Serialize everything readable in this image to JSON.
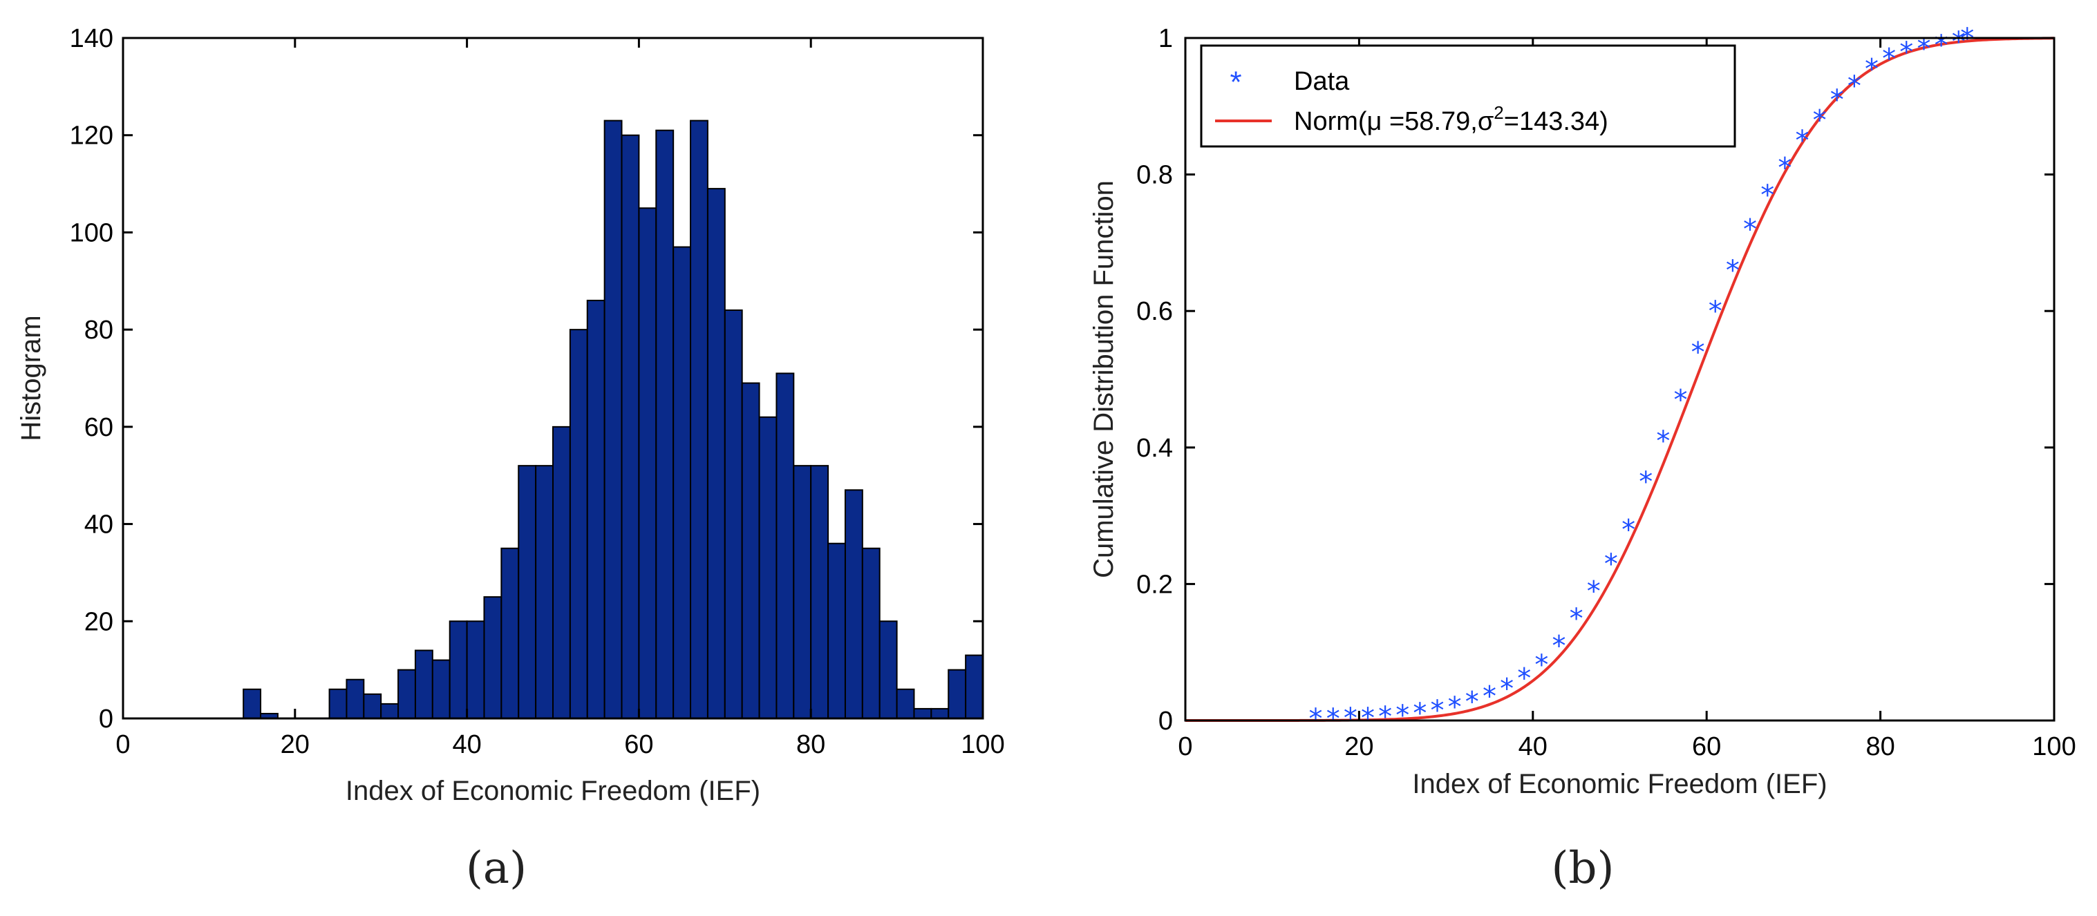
{
  "chart_data": [
    {
      "id": "a",
      "type": "bar",
      "subtype": "histogram",
      "panel_label": "(a)",
      "title": "",
      "xlabel": "Index of Economic Freedom (IEF)",
      "ylabel": "Histogram",
      "xlim": [
        0,
        100
      ],
      "ylim": [
        0,
        140
      ],
      "xticks": [
        0,
        20,
        40,
        60,
        80,
        100
      ],
      "yticks": [
        0,
        20,
        40,
        60,
        80,
        100,
        120,
        140
      ],
      "bin_width": 2,
      "bin_start": 0,
      "values": [
        0,
        0,
        0,
        0,
        0,
        0,
        0,
        6,
        1,
        0,
        0,
        0,
        6,
        8,
        5,
        3,
        10,
        14,
        12,
        20,
        20,
        25,
        35,
        52,
        52,
        60,
        80,
        86,
        123,
        120,
        105,
        121,
        97,
        123,
        109,
        84,
        69,
        62,
        71,
        52,
        52,
        36,
        47,
        35,
        20,
        6,
        2,
        2,
        10,
        13
      ],
      "color": "#0a2a8a"
    },
    {
      "id": "b",
      "type": "line",
      "subtype": "cdf",
      "panel_label": "(b)",
      "title": "",
      "xlabel": "Index of Economic Freedom (IEF)",
      "ylabel": "Cumulative Distribution Function",
      "xlim": [
        0,
        100
      ],
      "ylim": [
        0,
        1
      ],
      "xticks": [
        0,
        20,
        40,
        60,
        80,
        100
      ],
      "yticks": [
        0,
        0.2,
        0.4,
        0.6,
        0.8,
        1
      ],
      "yticklabels": [
        "0",
        "0.2",
        "0.4",
        "0.6",
        "0.8",
        "1"
      ],
      "legend": {
        "position": "top-left",
        "data_label": "Data",
        "fit_label_prefix": "Norm(μ =58.79,σ",
        "fit_label_sup": "2",
        "fit_label_suffix": "=143.34)"
      },
      "series": [
        {
          "name": "Data",
          "kind": "scatter",
          "marker": "*",
          "color": "#1f4fff",
          "x": [
            15,
            17,
            19,
            21,
            23,
            25,
            27,
            29,
            31,
            33,
            35,
            37,
            39,
            41,
            43,
            45,
            47,
            49,
            51,
            53,
            55,
            57,
            59,
            61,
            63,
            65,
            67,
            69,
            71,
            73,
            75,
            77,
            79,
            81,
            83,
            85,
            87,
            89,
            90
          ],
          "y": [
            0.003,
            0.003,
            0.004,
            0.004,
            0.006,
            0.008,
            0.011,
            0.015,
            0.02,
            0.028,
            0.036,
            0.047,
            0.062,
            0.082,
            0.11,
            0.15,
            0.19,
            0.23,
            0.28,
            0.35,
            0.41,
            0.47,
            0.54,
            0.6,
            0.66,
            0.72,
            0.77,
            0.81,
            0.85,
            0.88,
            0.91,
            0.93,
            0.955,
            0.97,
            0.98,
            0.985,
            0.99,
            0.995,
            1.0
          ]
        },
        {
          "name": "Norm(μ =58.79,σ²=143.34)",
          "kind": "line",
          "color": "#e8322a",
          "mu": 58.79,
          "sigma2": 143.34
        }
      ]
    }
  ]
}
